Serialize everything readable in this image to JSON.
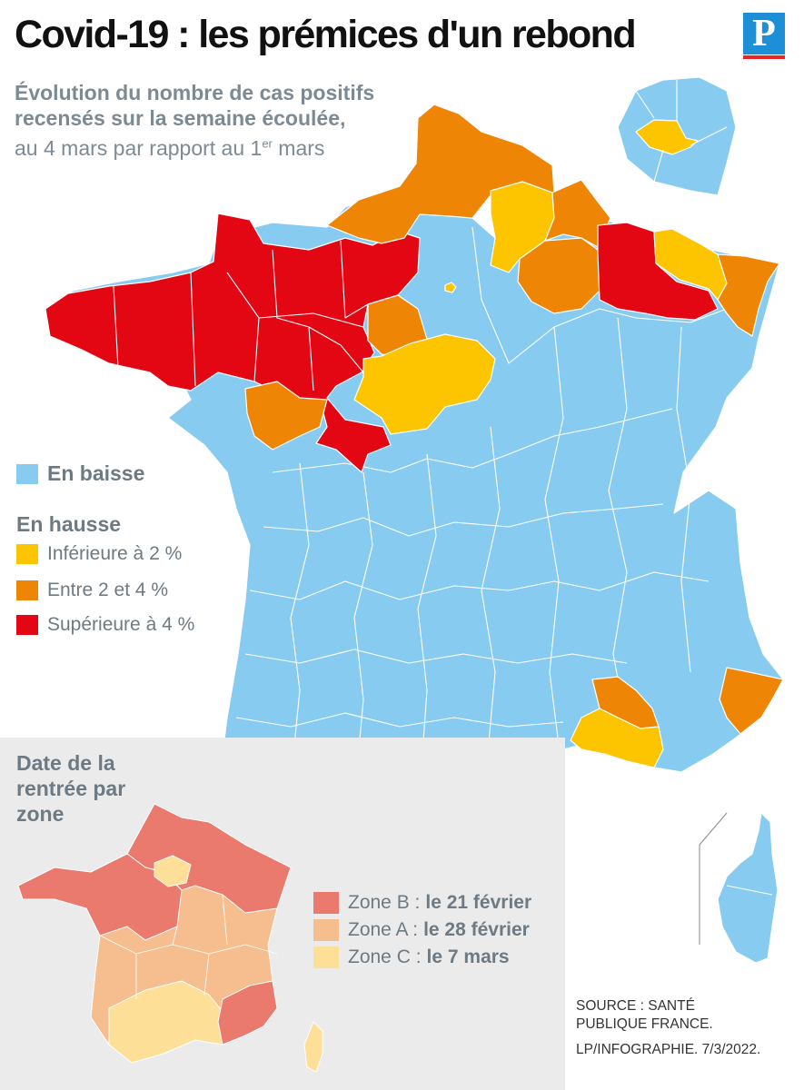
{
  "title": "Covid-19 : les prémices d'un rebond",
  "logo_letter": "P",
  "subtitle": {
    "line1": "Évolution du nombre de cas positifs",
    "line2": "recensés sur la semaine écoulée,",
    "line3_pre": "au 4 mars par rapport au 1",
    "line3_sup": "er",
    "line3_post": " mars"
  },
  "legend": {
    "down_label": "En baisse",
    "up_heading": "En hausse",
    "items": [
      {
        "label": "Inférieure à 2 %",
        "color": "#fdc400"
      },
      {
        "label": "Entre 2 et 4 %",
        "color": "#ee8505"
      },
      {
        "label": "Supérieure à 4 %",
        "color": "#e30613"
      }
    ],
    "down_color": "#87cbf1"
  },
  "inset": {
    "title": "Date de la rentrée par zone",
    "zones": [
      {
        "name": "Zone B :",
        "date": "le 21 février",
        "color": "#eb7a6e"
      },
      {
        "name": "Zone A :",
        "date": "le 28 février",
        "color": "#f6bd8e"
      },
      {
        "name": "Zone C :",
        "date": "le 7 mars",
        "color": "#fddf97"
      }
    ]
  },
  "source": {
    "line1": "SOURCE : SANTÉ",
    "line2": "PUBLIQUE FRANCE.",
    "credit": "LP/INFOGRAPHIE.  7/3/2022."
  }
}
